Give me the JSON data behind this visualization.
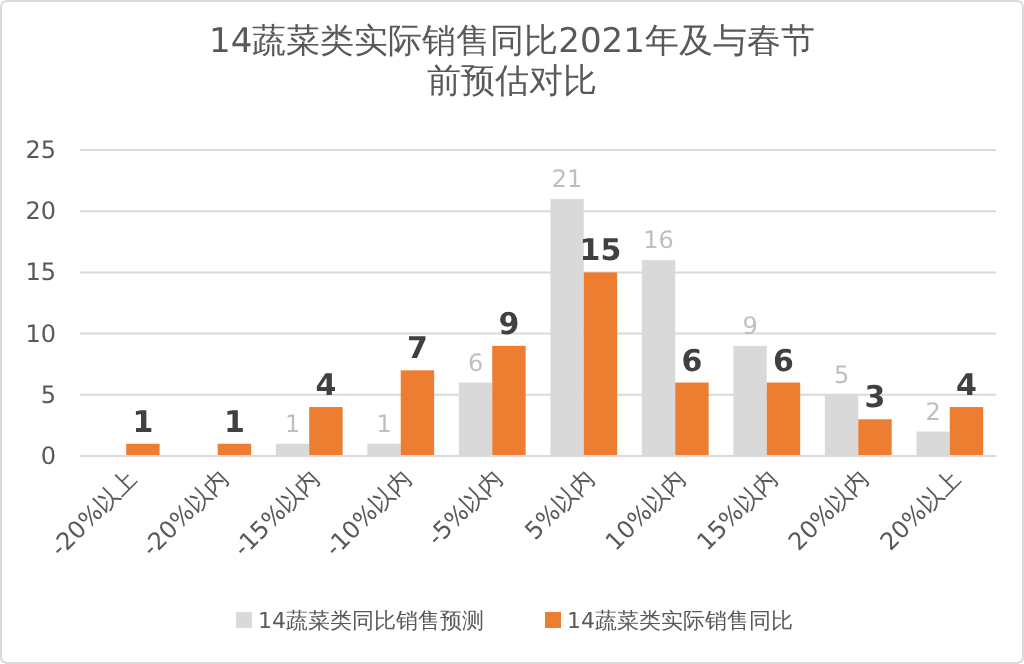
{
  "chart_data": {
    "type": "bar",
    "title": "14蔬菜类实际销售同比2021年及与春节前预估对比",
    "categories": [
      "-20%以上",
      "-20%以内",
      "-15%以内",
      "-10%以内",
      "-5%以内",
      "5%以内",
      "10%以内",
      "15%以内",
      "20%以内",
      "20%以上"
    ],
    "series": [
      {
        "name": "14蔬菜类同比销售预测",
        "color": "#d9d9d9",
        "values": [
          null,
          null,
          1,
          1,
          6,
          21,
          16,
          9,
          5,
          2
        ]
      },
      {
        "name": "14蔬菜类实际销售同比",
        "color": "#ed7d31",
        "values": [
          1,
          1,
          4,
          7,
          9,
          15,
          6,
          6,
          3,
          4
        ]
      }
    ],
    "ylim": [
      0,
      25
    ],
    "yticks": [
      0,
      5,
      10,
      15,
      20,
      25
    ],
    "grid": "y",
    "legend": "bottom",
    "data_labels": true
  }
}
